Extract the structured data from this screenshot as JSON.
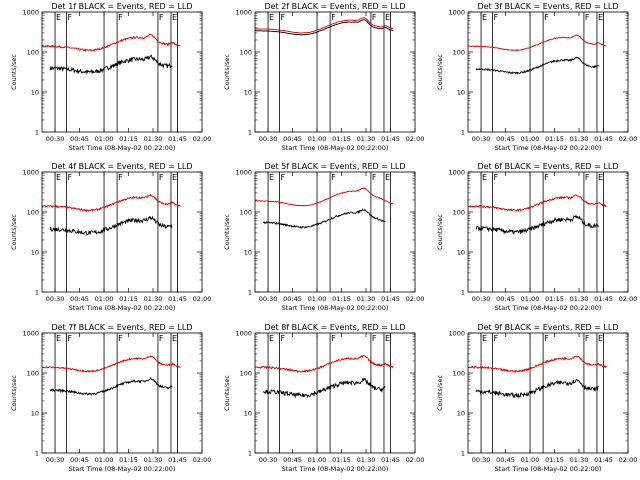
{
  "colors": {
    "events": "#000000",
    "lld": "#e00000",
    "axis": "#000000"
  },
  "x_tick_labels": [
    "00:30",
    "00:45",
    "01:00",
    "01:15",
    "01:30",
    "01:45",
    "02:00"
  ],
  "y_tick_labels": [
    "1",
    "10",
    "100",
    "1000"
  ],
  "ylabel": "Counts/sec",
  "xlabel": "Start Time (08-May-02 00:22:00)",
  "marker_labels": [
    "E",
    "F",
    "F",
    "F",
    "E"
  ],
  "chart_data": [
    {
      "type": "line",
      "title": "Det 1f BLACK = Events, RED = LLD",
      "ylim": [
        1,
        1000
      ],
      "log_y": true,
      "markers_min": [
        8,
        15,
        38,
        46,
        71,
        79,
        83
      ],
      "series": [
        {
          "name": "Events",
          "profile": "a",
          "x": [
            5,
            80
          ],
          "base": 40,
          "bump": 1.8,
          "noise": 0.12
        },
        {
          "name": "LLD",
          "profile": "a",
          "x": [
            0,
            85
          ],
          "base": 140,
          "bump": 1.6,
          "noise": 0.05
        }
      ]
    },
    {
      "type": "line",
      "title": "Det 2f BLACK = Events, RED = LLD",
      "ylim": [
        1,
        1000
      ],
      "log_y": true,
      "markers_min": [
        8,
        15,
        38,
        46,
        71,
        79,
        83
      ],
      "series": [
        {
          "name": "Events",
          "profile": "a",
          "x": [
            0,
            85
          ],
          "base": 340,
          "bump": 1.3,
          "noise": 0.01
        },
        {
          "name": "LLD",
          "profile": "a",
          "x": [
            0,
            85
          ],
          "base": 380,
          "bump": 1.3,
          "noise": 0.01
        }
      ]
    },
    {
      "type": "line",
      "title": "Det 3f BLACK = Events, RED = LLD",
      "ylim": [
        1,
        1000
      ],
      "log_y": true,
      "markers_min": [
        8,
        15,
        38,
        46,
        71,
        79,
        83
      ],
      "series": [
        {
          "name": "Events",
          "profile": "a",
          "x": [
            5,
            80
          ],
          "base": 38,
          "bump": 1.6,
          "noise": 0.05
        },
        {
          "name": "LLD",
          "profile": "a",
          "x": [
            0,
            85
          ],
          "base": 140,
          "bump": 1.6,
          "noise": 0.02
        }
      ]
    },
    {
      "type": "line",
      "title": "Det 4f BLACK = Events, RED = LLD",
      "ylim": [
        1,
        1000
      ],
      "log_y": true,
      "markers_min": [
        8,
        15,
        38,
        46,
        71,
        79,
        83
      ],
      "series": [
        {
          "name": "Events",
          "profile": "a",
          "x": [
            5,
            80
          ],
          "base": 38,
          "bump": 1.8,
          "noise": 0.12
        },
        {
          "name": "LLD",
          "profile": "a",
          "x": [
            0,
            85
          ],
          "base": 140,
          "bump": 1.6,
          "noise": 0.05
        }
      ]
    },
    {
      "type": "line",
      "title": "Det 5f BLACK = Events, RED = LLD",
      "ylim": [
        1,
        1000
      ],
      "log_y": true,
      "markers_min": [
        8,
        15,
        38,
        46,
        71,
        79,
        83
      ],
      "series": [
        {
          "name": "Events",
          "profile": "b",
          "x": [
            5,
            80
          ],
          "base": 55,
          "bump": 1.6,
          "noise": 0.05
        },
        {
          "name": "LLD",
          "profile": "b",
          "x": [
            0,
            85
          ],
          "base": 190,
          "bump": 1.6,
          "noise": 0.02
        }
      ]
    },
    {
      "type": "line",
      "title": "Det 6f BLACK = Events, RED = LLD",
      "ylim": [
        1,
        1000
      ],
      "log_y": true,
      "markers_min": [
        8,
        15,
        38,
        46,
        71,
        79,
        83
      ],
      "series": [
        {
          "name": "Events",
          "profile": "a",
          "x": [
            5,
            80
          ],
          "base": 40,
          "bump": 1.8,
          "noise": 0.12
        },
        {
          "name": "LLD",
          "profile": "a",
          "x": [
            0,
            85
          ],
          "base": 140,
          "bump": 1.6,
          "noise": 0.05
        }
      ]
    },
    {
      "type": "line",
      "title": "Det 7f BLACK = Events, RED = LLD",
      "ylim": [
        1,
        1000
      ],
      "log_y": true,
      "markers_min": [
        8,
        15,
        38,
        46,
        71,
        79,
        83
      ],
      "series": [
        {
          "name": "Events",
          "profile": "a",
          "x": [
            5,
            80
          ],
          "base": 38,
          "bump": 1.6,
          "noise": 0.06
        },
        {
          "name": "LLD",
          "profile": "a",
          "x": [
            0,
            85
          ],
          "base": 140,
          "bump": 1.6,
          "noise": 0.04
        }
      ]
    },
    {
      "type": "line",
      "title": "Det 8f BLACK = Events, RED = LLD",
      "ylim": [
        1,
        1000
      ],
      "log_y": true,
      "markers_min": [
        8,
        15,
        38,
        46,
        71,
        79,
        83
      ],
      "series": [
        {
          "name": "Events",
          "profile": "a",
          "x": [
            5,
            80
          ],
          "base": 35,
          "bump": 1.8,
          "noise": 0.12
        },
        {
          "name": "LLD",
          "profile": "a",
          "x": [
            0,
            85
          ],
          "base": 140,
          "bump": 1.6,
          "noise": 0.05
        }
      ]
    },
    {
      "type": "line",
      "title": "Det 9f BLACK = Events, RED = LLD",
      "ylim": [
        1,
        1000
      ],
      "log_y": true,
      "markers_min": [
        8,
        15,
        38,
        46,
        71,
        79,
        83
      ],
      "series": [
        {
          "name": "Events",
          "profile": "a",
          "x": [
            5,
            80
          ],
          "base": 35,
          "bump": 1.8,
          "noise": 0.12
        },
        {
          "name": "LLD",
          "profile": "a",
          "x": [
            0,
            85
          ],
          "base": 140,
          "bump": 1.6,
          "noise": 0.05
        }
      ]
    }
  ]
}
